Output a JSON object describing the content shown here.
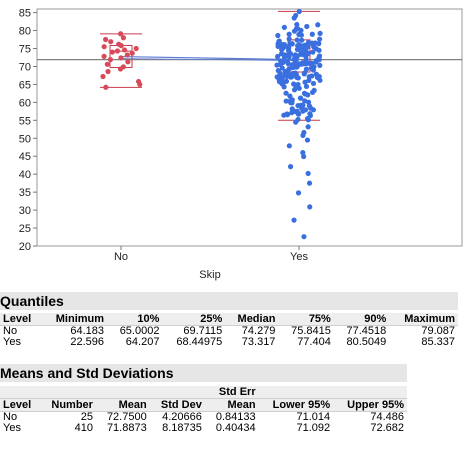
{
  "chart_data": {
    "type": "scatter",
    "xlabel": "Skip",
    "ylabel": "",
    "ylim": [
      20,
      86
    ],
    "yticks": [
      20,
      25,
      30,
      35,
      40,
      45,
      50,
      55,
      60,
      65,
      70,
      75,
      80,
      85
    ],
    "categories": [
      "No",
      "Yes"
    ],
    "grand_mean": 71.9,
    "series": [
      {
        "category": "No",
        "color": "#d64a5a",
        "mean": 72.75,
        "min": 64.183,
        "q1": 69.7115,
        "median": 74.279,
        "q3": 75.8415,
        "max": 79.087,
        "points": [
          79.1,
          78.0,
          77.5,
          76.9,
          76.2,
          75.8,
          75.5,
          75.0,
          74.6,
          74.3,
          74.0,
          73.7,
          73.2,
          72.8,
          72.4,
          71.9,
          71.3,
          70.6,
          69.9,
          69.3,
          68.6,
          67.2,
          65.8,
          65.0,
          64.2
        ]
      },
      {
        "category": "Yes",
        "color": "#3a6fe0",
        "mean": 71.8873,
        "min": 22.596,
        "q1": 68.44975,
        "median": 73.317,
        "q3": 77.404,
        "max": 85.337,
        "low_points": [
          22.6,
          27.2,
          30.9,
          34.8,
          37.5,
          40.2,
          42.1,
          44.9,
          46.0,
          47.9,
          49.5,
          50.8,
          51.6,
          53.2,
          54.5
        ]
      }
    ]
  },
  "quantiles": {
    "title": "Quantiles",
    "headers": [
      "Level",
      "Minimum",
      "10%",
      "25%",
      "Median",
      "75%",
      "90%",
      "Maximum"
    ],
    "rows": [
      [
        "No",
        "64.183",
        "65.0002",
        "69.7115",
        "74.279",
        "75.8415",
        "77.4518",
        "79.087"
      ],
      [
        "Yes",
        "22.596",
        "64.207",
        "68.44975",
        "73.317",
        "77.404",
        "80.5049",
        "85.337"
      ]
    ]
  },
  "means": {
    "title": "Means and Std Deviations",
    "headers_top": [
      "",
      "",
      "",
      "",
      "Std Err",
      "",
      ""
    ],
    "headers": [
      "Level",
      "Number",
      "Mean",
      "Std Dev",
      "Mean",
      "Lower 95%",
      "Upper 95%"
    ],
    "rows": [
      [
        "No",
        "25",
        "72.7500",
        "4.20666",
        "0.84133",
        "71.014",
        "74.486"
      ],
      [
        "Yes",
        "410",
        "71.8873",
        "8.18735",
        "0.40434",
        "71.092",
        "72.682"
      ]
    ]
  },
  "colors": {
    "no_series": "#d64a5a",
    "yes_series": "#3a6fe0",
    "mean_line": "#5b7bd6",
    "grand_mean_line": "#808080"
  }
}
